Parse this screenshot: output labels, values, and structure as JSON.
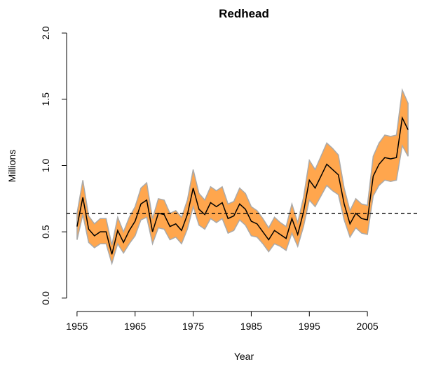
{
  "chart_data": {
    "type": "band-line",
    "title": "Redhead",
    "xlabel": "Year",
    "ylabel": "Millions",
    "x": [
      1955,
      1956,
      1957,
      1958,
      1959,
      1960,
      1961,
      1962,
      1963,
      1964,
      1965,
      1966,
      1967,
      1968,
      1969,
      1970,
      1971,
      1972,
      1973,
      1974,
      1975,
      1976,
      1977,
      1978,
      1979,
      1980,
      1981,
      1982,
      1983,
      1984,
      1985,
      1986,
      1987,
      1988,
      1989,
      1990,
      1991,
      1992,
      1993,
      1994,
      1995,
      1996,
      1997,
      1998,
      1999,
      2000,
      2001,
      2002,
      2003,
      2004,
      2005,
      2006,
      2007,
      2008,
      2009,
      2010,
      2011,
      2012
    ],
    "values": [
      0.54,
      0.76,
      0.52,
      0.47,
      0.5,
      0.5,
      0.33,
      0.51,
      0.42,
      0.51,
      0.58,
      0.71,
      0.74,
      0.5,
      0.64,
      0.63,
      0.54,
      0.56,
      0.51,
      0.63,
      0.83,
      0.67,
      0.63,
      0.72,
      0.69,
      0.72,
      0.6,
      0.62,
      0.71,
      0.67,
      0.58,
      0.56,
      0.5,
      0.44,
      0.51,
      0.48,
      0.45,
      0.6,
      0.48,
      0.65,
      0.89,
      0.83,
      0.92,
      1.01,
      0.97,
      0.93,
      0.71,
      0.56,
      0.64,
      0.6,
      0.59,
      0.92,
      1.01,
      1.06,
      1.05,
      1.06,
      1.36,
      1.27
    ],
    "upper": [
      0.64,
      0.89,
      0.62,
      0.56,
      0.6,
      0.6,
      0.4,
      0.61,
      0.5,
      0.61,
      0.69,
      0.83,
      0.87,
      0.6,
      0.75,
      0.74,
      0.64,
      0.66,
      0.61,
      0.74,
      0.97,
      0.79,
      0.74,
      0.84,
      0.81,
      0.84,
      0.71,
      0.73,
      0.83,
      0.79,
      0.69,
      0.66,
      0.6,
      0.53,
      0.61,
      0.57,
      0.54,
      0.71,
      0.57,
      0.76,
      1.04,
      0.97,
      1.07,
      1.17,
      1.13,
      1.08,
      0.83,
      0.66,
      0.75,
      0.71,
      0.7,
      1.07,
      1.17,
      1.23,
      1.22,
      1.23,
      1.57,
      1.47
    ],
    "lower": [
      0.44,
      0.63,
      0.42,
      0.38,
      0.41,
      0.41,
      0.26,
      0.41,
      0.34,
      0.41,
      0.47,
      0.59,
      0.61,
      0.41,
      0.53,
      0.52,
      0.44,
      0.46,
      0.41,
      0.52,
      0.69,
      0.55,
      0.52,
      0.6,
      0.57,
      0.6,
      0.49,
      0.51,
      0.59,
      0.55,
      0.47,
      0.46,
      0.41,
      0.35,
      0.41,
      0.39,
      0.36,
      0.49,
      0.39,
      0.54,
      0.74,
      0.69,
      0.77,
      0.85,
      0.81,
      0.78,
      0.59,
      0.46,
      0.53,
      0.49,
      0.48,
      0.77,
      0.85,
      0.89,
      0.88,
      0.89,
      1.15,
      1.07
    ],
    "line_color": "#000000",
    "band_color": "#ffa64d",
    "band_edge_color": "#aaaaaa",
    "reference_line": 0.64,
    "xlim": [
      1952.72,
      2014.28
    ],
    "xticks": [
      1955,
      1965,
      1975,
      1985,
      1995,
      2005
    ],
    "ylim": [
      -0.08,
      2.08
    ],
    "yticks": [
      {
        "value": 0,
        "label": "0.0"
      },
      0.5,
      {
        "value": 1,
        "label": "1.0"
      },
      1.5,
      {
        "value": 2,
        "label": "2.0"
      }
    ]
  }
}
